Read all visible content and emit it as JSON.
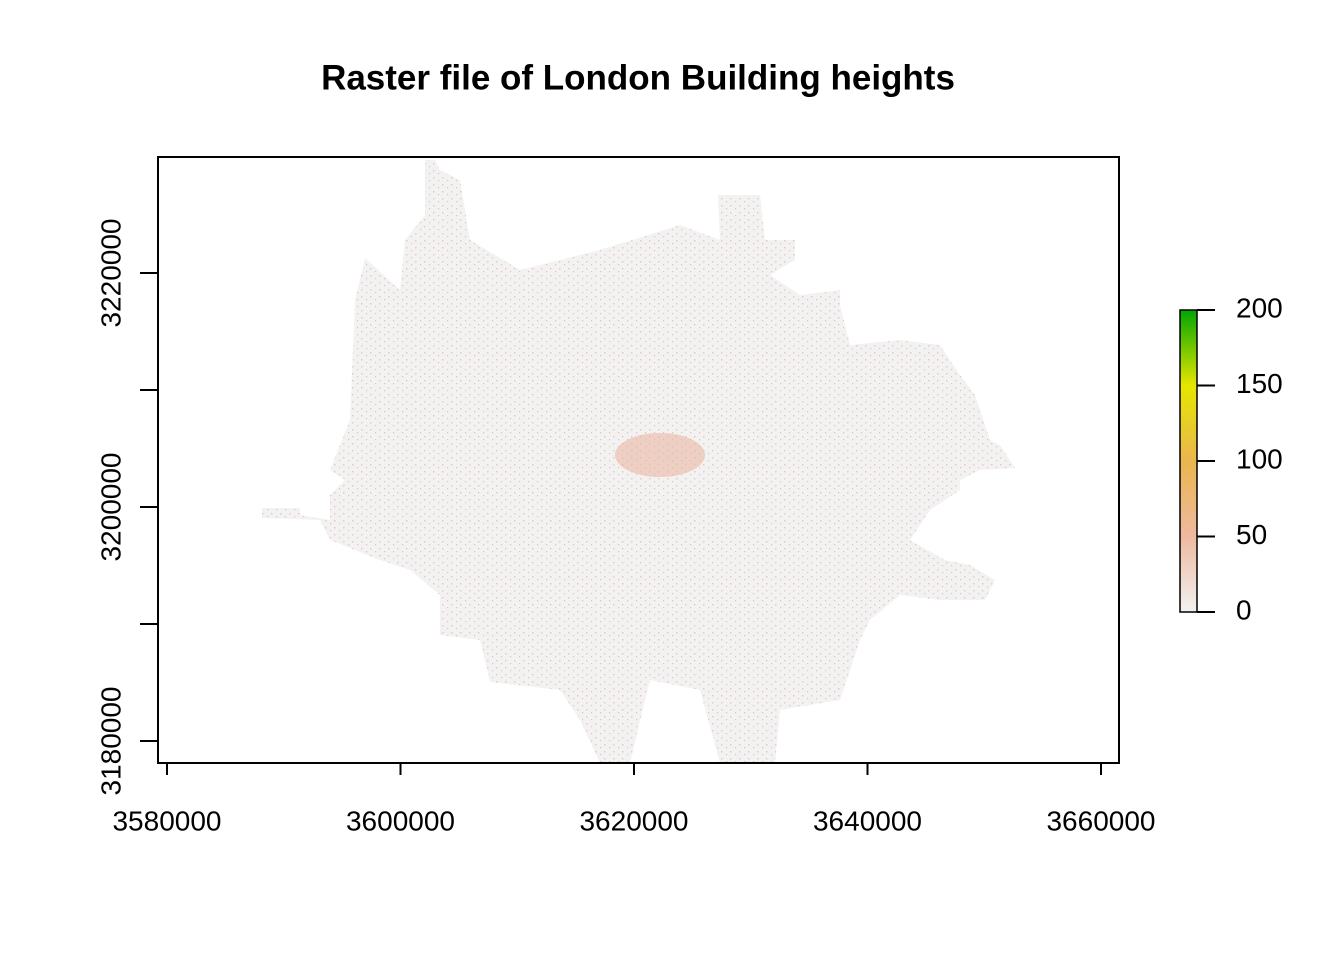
{
  "chart_data": {
    "type": "raster",
    "title": "Raster file of London Building heights",
    "xlim": [
      3579229,
      3661542
    ],
    "ylim": [
      3178120,
      3229915
    ],
    "xticks": [
      3580000,
      3600000,
      3620000,
      3640000,
      3660000
    ],
    "yticks": [
      3180000,
      3200000,
      3220000
    ],
    "yminor_ticks": [
      3190000,
      3210000
    ],
    "raster_color": "#f2f2f2",
    "colorbar": {
      "lim": [
        0,
        200
      ],
      "ticks": [
        0,
        50,
        100,
        150,
        200
      ],
      "colors": [
        "#f2f2f2",
        "#eeb99f",
        "#eab64e",
        "#e6e600",
        "#00a600"
      ]
    }
  }
}
